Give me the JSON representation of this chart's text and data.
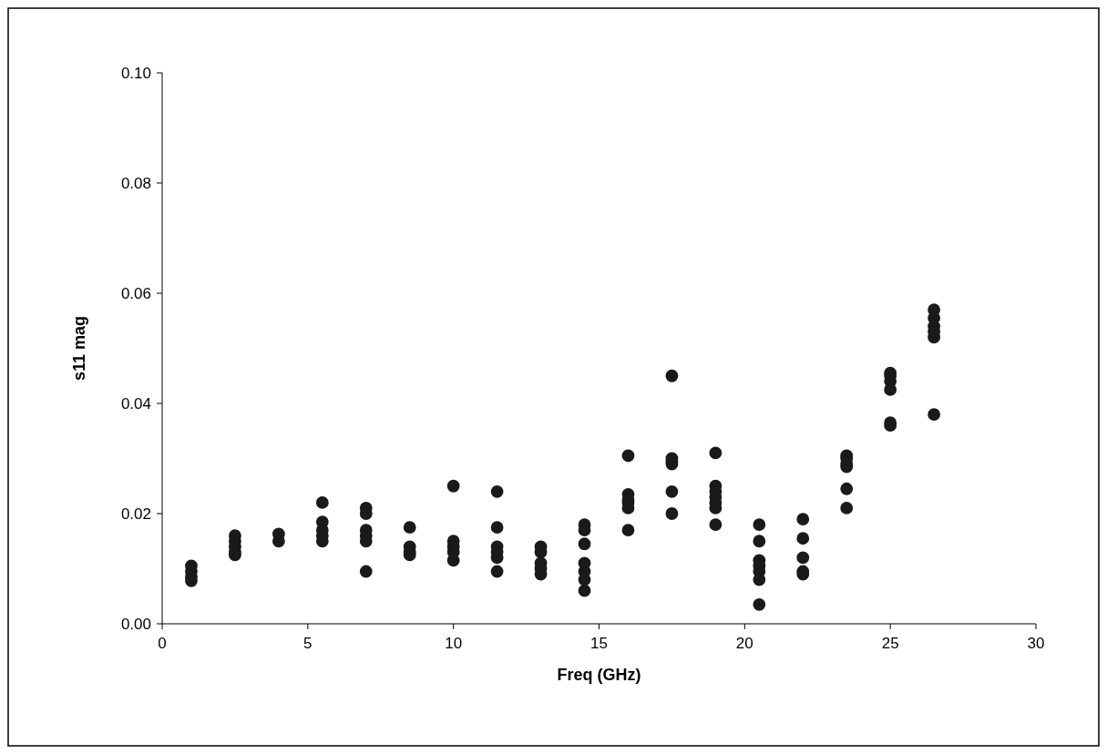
{
  "chart_data": {
    "type": "scatter",
    "xlabel": "Freq (GHz)",
    "ylabel": "s11 mag",
    "xlim": [
      0,
      30
    ],
    "xticks": [
      0,
      5,
      10,
      15,
      20,
      25,
      30
    ],
    "ylim": [
      0,
      0.1
    ],
    "yticks": [
      {
        "value": 0,
        "label": "0.00"
      },
      {
        "value": 0.02,
        "label": "0.02"
      },
      {
        "value": 0.04,
        "label": "0.04"
      },
      {
        "value": 0.06,
        "label": "0.06"
      },
      {
        "value": 0.08,
        "label": "0.08"
      },
      {
        "value": 0.1,
        "label": "0.10"
      }
    ],
    "grid": false,
    "marker": "circle",
    "series": [
      {
        "color": "#1a1a1a",
        "x": [
          1,
          1,
          1,
          1,
          2.5,
          2.5,
          2.5,
          2.5,
          2.5,
          4,
          4,
          5.5,
          5.5,
          5.5,
          5.5,
          5.5,
          7,
          7,
          7,
          7,
          7,
          7,
          8.5,
          8.5,
          8.5,
          8.5,
          10,
          10,
          10,
          10,
          10,
          11.5,
          11.5,
          11.5,
          11.5,
          11.5,
          11.5,
          13,
          13,
          13,
          13,
          13,
          14.5,
          14.5,
          14.5,
          14.5,
          14.5,
          14.5,
          14.5,
          16,
          16,
          16,
          16,
          16,
          16,
          17.5,
          17.5,
          17.5,
          17.5,
          17.5,
          17.5,
          19,
          19,
          19,
          19,
          19,
          19,
          19,
          20.5,
          20.5,
          20.5,
          20.5,
          20.5,
          20.5,
          20.5,
          22,
          22,
          22,
          22,
          22,
          23.5,
          23.5,
          23.5,
          23.5,
          23.5,
          23.5,
          25,
          25,
          25,
          25,
          25,
          25,
          26.5,
          26.5,
          26.5,
          26.5,
          26.5,
          26.5
        ],
        "values": [
          0.0105,
          0.0095,
          0.0085,
          0.0078,
          0.016,
          0.015,
          0.014,
          0.013,
          0.0125,
          0.0163,
          0.015,
          0.022,
          0.0185,
          0.017,
          0.016,
          0.015,
          0.021,
          0.02,
          0.017,
          0.016,
          0.015,
          0.0095,
          0.0175,
          0.014,
          0.013,
          0.0125,
          0.025,
          0.015,
          0.014,
          0.013,
          0.0115,
          0.024,
          0.0175,
          0.014,
          0.013,
          0.012,
          0.0095,
          0.014,
          0.013,
          0.011,
          0.01,
          0.009,
          0.018,
          0.017,
          0.0145,
          0.011,
          0.0095,
          0.008,
          0.006,
          0.0305,
          0.0235,
          0.0225,
          0.022,
          0.021,
          0.017,
          0.045,
          0.03,
          0.0295,
          0.029,
          0.024,
          0.02,
          0.031,
          0.025,
          0.024,
          0.023,
          0.022,
          0.021,
          0.018,
          0.018,
          0.015,
          0.0115,
          0.0105,
          0.0095,
          0.008,
          0.0035,
          0.019,
          0.0155,
          0.012,
          0.0095,
          0.009,
          0.0305,
          0.03,
          0.029,
          0.0285,
          0.0245,
          0.021,
          0.0455,
          0.045,
          0.044,
          0.0425,
          0.0365,
          0.036,
          0.057,
          0.0555,
          0.054,
          0.053,
          0.052,
          0.038
        ]
      }
    ]
  }
}
